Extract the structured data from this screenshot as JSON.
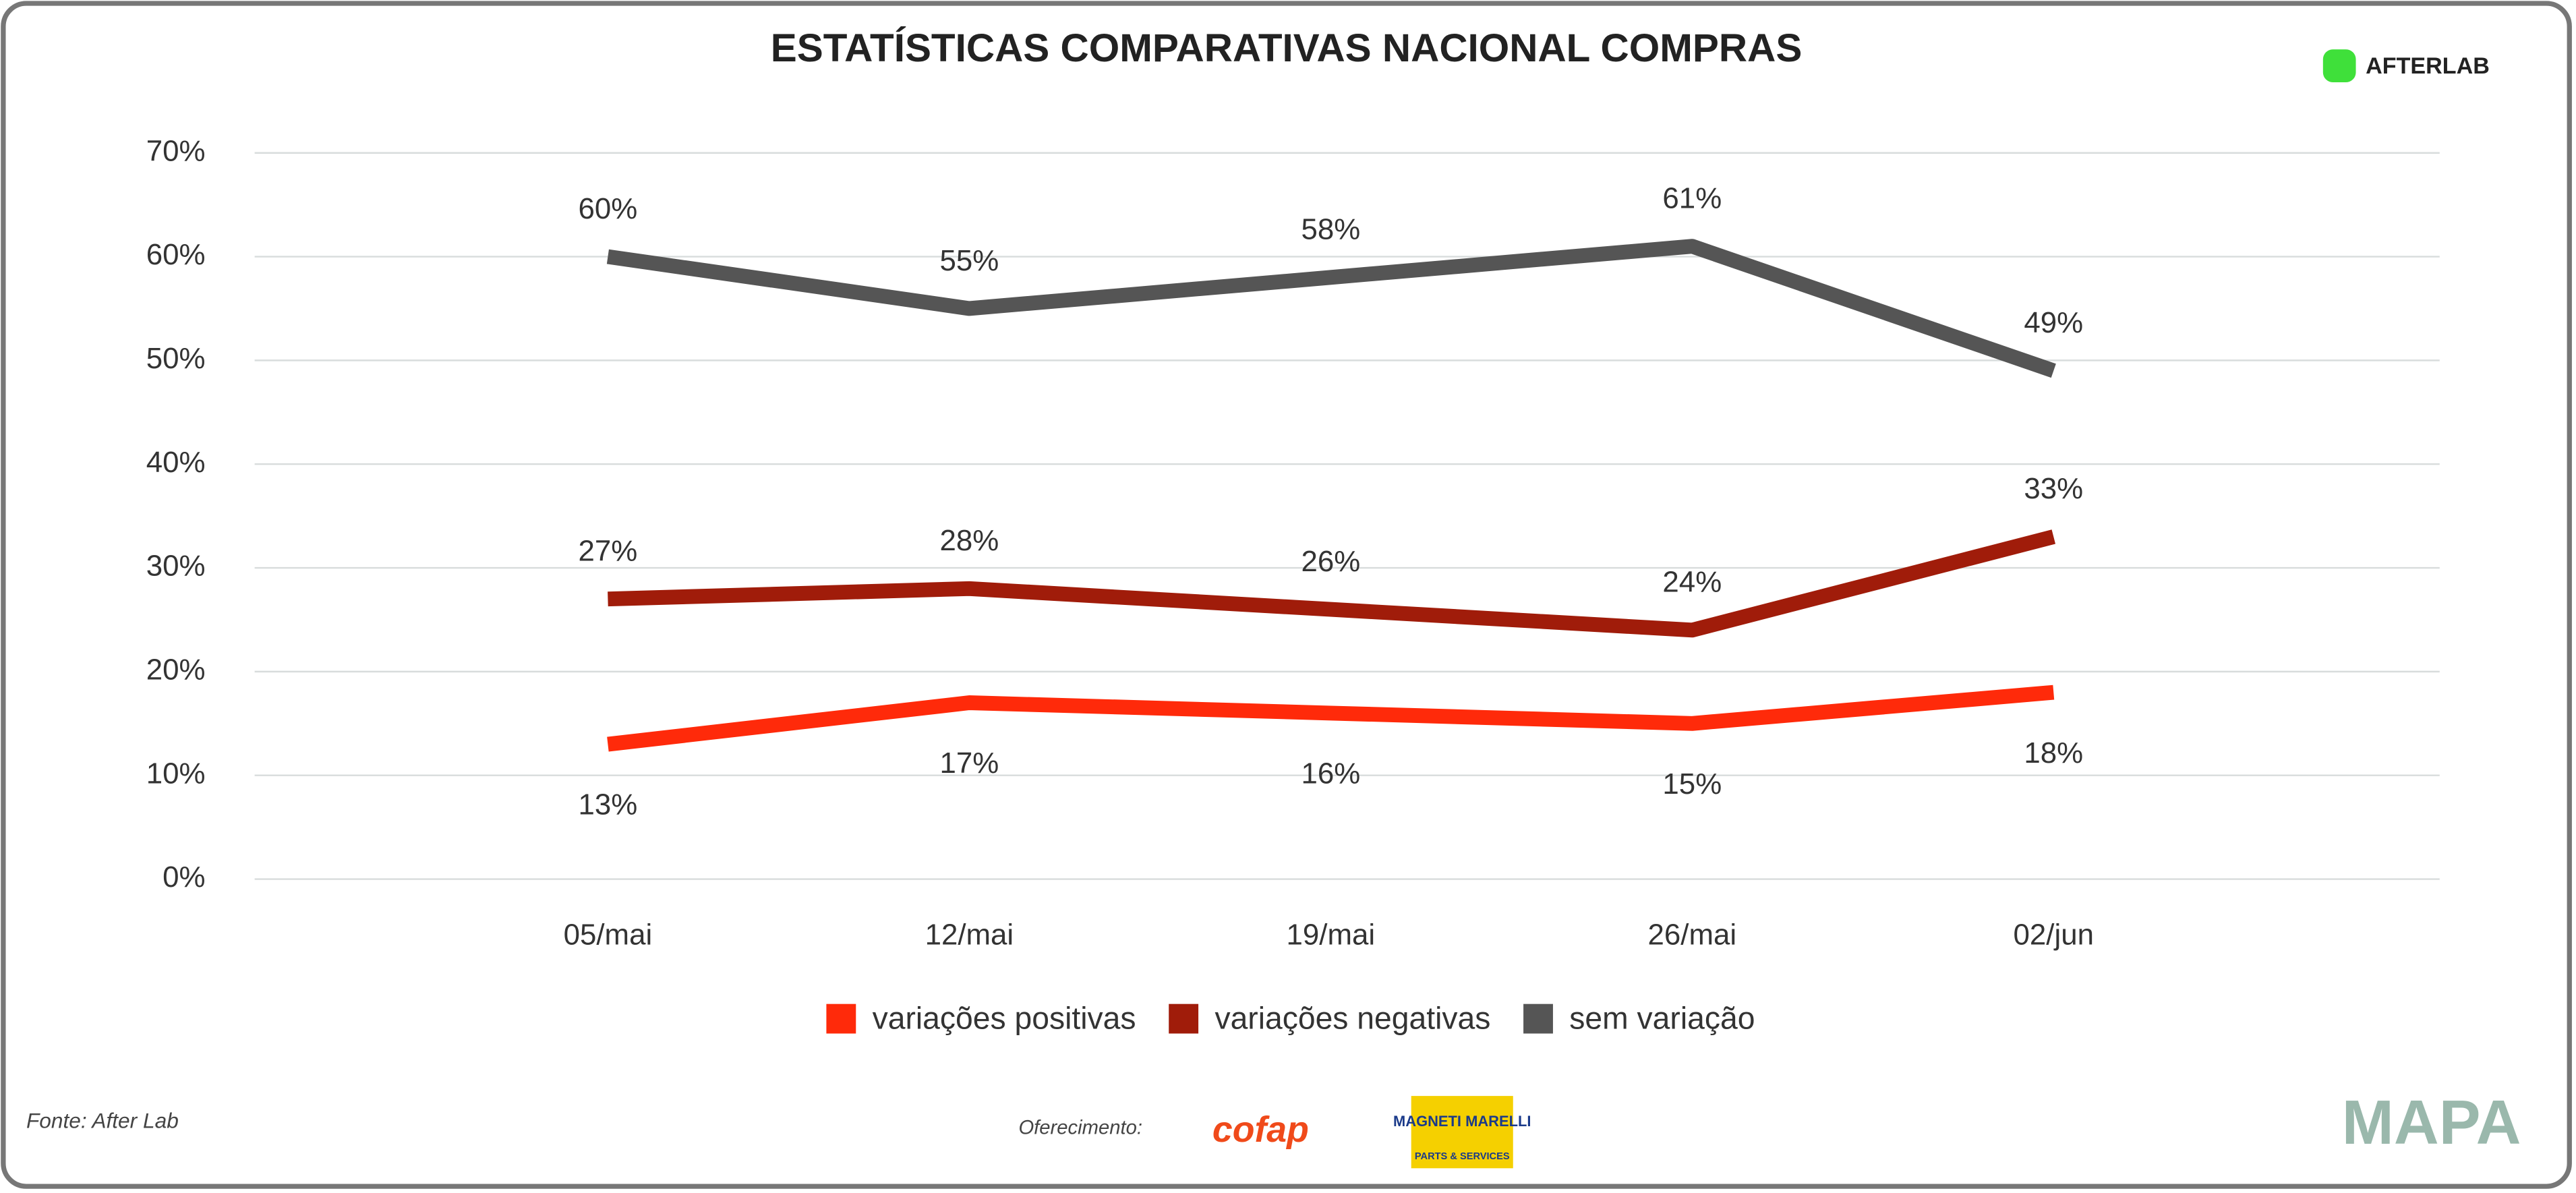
{
  "chart_data": {
    "type": "line",
    "title": "ESTATÍSTICAS COMPARATIVAS NACIONAL COMPRAS",
    "categories": [
      "05/mai",
      "12/mai",
      "19/mai",
      "26/mai",
      "02/jun"
    ],
    "series": [
      {
        "name": "variações positivas",
        "color": "#ff2a0a",
        "values": [
          13,
          17,
          16,
          15,
          18
        ],
        "value_labels": [
          "13%",
          "17%",
          "16%",
          "15%",
          "18%"
        ]
      },
      {
        "name": "variações negativas",
        "color": "#a01c0a",
        "values": [
          27,
          28,
          26,
          24,
          33
        ],
        "value_labels": [
          "27%",
          "28%",
          "26%",
          "24%",
          "33%"
        ]
      },
      {
        "name": "sem variação",
        "color": "#555555",
        "values": [
          60,
          55,
          58,
          61,
          49
        ],
        "value_labels": [
          "60%",
          "55%",
          "58%",
          "61%",
          "49%"
        ]
      }
    ],
    "ylim": [
      0,
      70
    ],
    "yticks": [
      {
        "value": 0,
        "label": "0%"
      },
      {
        "value": 10,
        "label": "10%"
      },
      {
        "value": 20,
        "label": "20%"
      },
      {
        "value": 30,
        "label": "30%"
      },
      {
        "value": 40,
        "label": "40%"
      },
      {
        "value": 50,
        "label": "50%"
      },
      {
        "value": 60,
        "label": "60%"
      },
      {
        "value": 70,
        "label": "70%"
      }
    ],
    "grid": true,
    "legend": "bottom"
  },
  "brand": "AFTERLAB",
  "source": "Fonte: After Lab",
  "sponsor_label": "Oferecimento:",
  "sponsors": [
    "cofap",
    "MAGNETI MARELLI",
    "PARTS & SERVICES"
  ],
  "footer_logo": "MAPA"
}
